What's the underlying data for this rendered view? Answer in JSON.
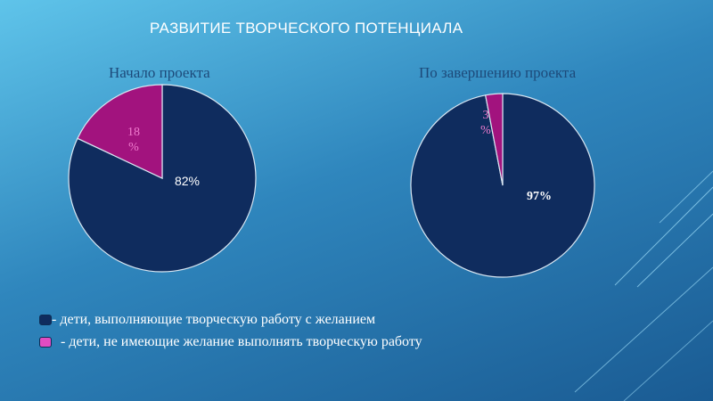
{
  "title": "РАЗВИТИЕ ТВОРЧЕСКОГО ПОТЕНЦИАЛА",
  "colors": {
    "dark": "#0f2c5e",
    "magenta": "#a2137e",
    "legend_magenta": "#e04cc2"
  },
  "chart_data": [
    {
      "type": "pie",
      "title": "Начало проекта",
      "slices": [
        {
          "name": "- дети, выполняющие творческую работу с желанием",
          "value": 82,
          "label": "82%"
        },
        {
          "name": "- дети, не имеющие желание выполнять творческую работу",
          "value": 18,
          "label_lines": [
            "18",
            "%"
          ]
        }
      ]
    },
    {
      "type": "pie",
      "title": "По завершению проекта",
      "slices": [
        {
          "name": "- дети, выполняющие творческую работу с желанием",
          "value": 97,
          "label": "97%"
        },
        {
          "name": "- дети, не имеющие желание выполнять творческую работу",
          "value": 3,
          "label_lines": [
            "3",
            "%"
          ]
        }
      ]
    }
  ],
  "legend": [
    {
      "label": "- дети, выполняющие творческую работу с желанием",
      "color": "#0f2c5e"
    },
    {
      "label": " - дети, не имеющие желание выполнять творческую работу",
      "color": "#e04cc2"
    }
  ]
}
